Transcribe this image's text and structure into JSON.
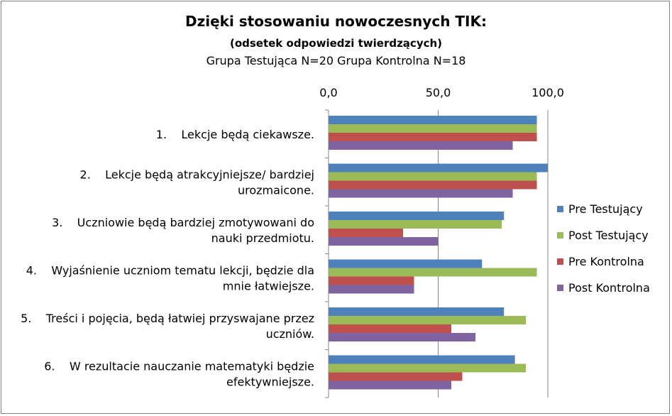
{
  "chart_data": {
    "type": "bar",
    "orientation": "horizontal",
    "title": "Dzięki stosowaniu nowoczesnych TIK:",
    "subtitle": "(odsetek odpowiedzi twierdzących)",
    "subtitle2": "Grupa Testująca N=20 Grupa Kontrolna N=18",
    "xlim": [
      0,
      100
    ],
    "x_ticks": [
      "0,0",
      "50,0",
      "100,0"
    ],
    "grid": "vertical",
    "legend_position": "right",
    "categories": [
      [
        "1.    Lekcje będą ciekawsze."
      ],
      [
        "2.    Lekcje będą atrakcyjniejsze/ bardziej",
        "urozmaicone."
      ],
      [
        "3.    Uczniowie będą bardziej zmotywowani do",
        "nauki przedmiotu."
      ],
      [
        "4.    Wyjaśnienie uczniom tematu lekcji, będzie dla",
        "mnie łatwiejsze."
      ],
      [
        "5.    Treści i pojęcia, będą łatwiej przyswajane przez",
        "uczniów."
      ],
      [
        "6.    W rezultacie nauczanie matematyki będzie",
        "efektywniejsze."
      ]
    ],
    "series": [
      {
        "name": "Pre Testujący",
        "color": "#4f81bd",
        "values": [
          95,
          100,
          80,
          70,
          80,
          85
        ]
      },
      {
        "name": "Post Testujący",
        "color": "#9bbb59",
        "values": [
          95,
          95,
          79,
          95,
          90,
          90
        ]
      },
      {
        "name": "Pre Kontrolna",
        "color": "#c0504d",
        "values": [
          95,
          95,
          34,
          39,
          56,
          61
        ]
      },
      {
        "name": "Post Kontrolna",
        "color": "#8064a2",
        "values": [
          84,
          84,
          50,
          39,
          67,
          56
        ]
      }
    ]
  }
}
